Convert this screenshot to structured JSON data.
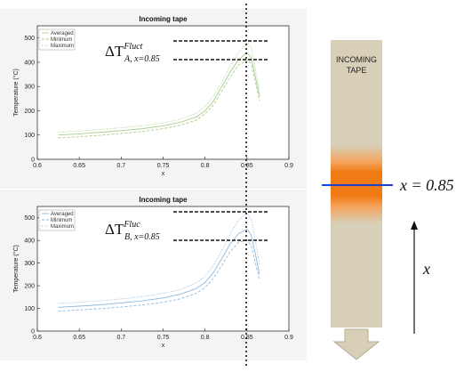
{
  "chart_data": [
    {
      "type": "line",
      "title": "Incoming tape",
      "xlabel": "x",
      "ylabel": "Temperature (°C)",
      "xlim": [
        0.6,
        0.9
      ],
      "ylim": [
        0,
        550
      ],
      "xticks": [
        "0.6",
        "0.65",
        "0.7",
        "0.75",
        "0.8",
        "0.85",
        "0.9"
      ],
      "yticks": [
        "0",
        "100",
        "200",
        "300",
        "400",
        "500"
      ],
      "grid": false,
      "legend_position": "top-left",
      "color": "#a9cc8a",
      "annotation": {
        "main": "ΔT",
        "sup": "Fluct",
        "sub": "A, x=0.85"
      },
      "series": [
        {
          "name": "Averaged",
          "style": "solid",
          "x": [
            0.625,
            0.65,
            0.675,
            0.7,
            0.725,
            0.75,
            0.77,
            0.79,
            0.8,
            0.81,
            0.82,
            0.83,
            0.84,
            0.85,
            0.855,
            0.86,
            0.865
          ],
          "y": [
            100,
            105,
            111,
            118,
            126,
            138,
            152,
            175,
            200,
            240,
            300,
            360,
            410,
            440,
            420,
            340,
            260
          ]
        },
        {
          "name": "Minimum",
          "style": "dash",
          "x": [
            0.625,
            0.65,
            0.675,
            0.7,
            0.725,
            0.75,
            0.77,
            0.79,
            0.8,
            0.81,
            0.82,
            0.83,
            0.84,
            0.85,
            0.855,
            0.86,
            0.865
          ],
          "y": [
            88,
            93,
            99,
            106,
            114,
            126,
            140,
            162,
            187,
            225,
            282,
            340,
            388,
            410,
            395,
            320,
            240
          ]
        },
        {
          "name": "Maximum",
          "style": "dot",
          "x": [
            0.625,
            0.65,
            0.675,
            0.7,
            0.725,
            0.75,
            0.77,
            0.79,
            0.8,
            0.81,
            0.82,
            0.83,
            0.84,
            0.85,
            0.855,
            0.86,
            0.865
          ],
          "y": [
            112,
            117,
            123,
            130,
            138,
            150,
            165,
            190,
            218,
            260,
            320,
            385,
            440,
            480,
            460,
            370,
            285
          ]
        }
      ]
    },
    {
      "type": "line",
      "title": "Incoming tape",
      "xlabel": "x",
      "ylabel": "Temperature (°C)",
      "xlim": [
        0.6,
        0.9
      ],
      "ylim": [
        0,
        550
      ],
      "xticks": [
        "0.6",
        "0.65",
        "0.7",
        "0.75",
        "0.8",
        "0.85",
        "0.9"
      ],
      "yticks": [
        "0",
        "100",
        "200",
        "300",
        "400",
        "500"
      ],
      "grid": false,
      "legend_position": "top-left",
      "color": "#8fb9dd",
      "annotation": {
        "main": "ΔT",
        "sup": "Fluc",
        "sub": "B, x=0.85"
      },
      "series": [
        {
          "name": "Averaged",
          "style": "solid",
          "x": [
            0.625,
            0.65,
            0.675,
            0.7,
            0.725,
            0.75,
            0.77,
            0.79,
            0.8,
            0.81,
            0.82,
            0.83,
            0.84,
            0.85,
            0.855,
            0.86,
            0.865
          ],
          "y": [
            105,
            110,
            116,
            124,
            133,
            146,
            162,
            188,
            215,
            258,
            320,
            385,
            430,
            450,
            425,
            340,
            250
          ]
        },
        {
          "name": "Minimum",
          "style": "dash",
          "x": [
            0.625,
            0.65,
            0.675,
            0.7,
            0.725,
            0.75,
            0.77,
            0.79,
            0.8,
            0.81,
            0.82,
            0.83,
            0.84,
            0.85,
            0.855,
            0.86,
            0.865
          ],
          "y": [
            88,
            93,
            99,
            106,
            115,
            127,
            142,
            167,
            192,
            232,
            290,
            350,
            392,
            400,
            380,
            300,
            225
          ]
        },
        {
          "name": "Maximum",
          "style": "dot",
          "x": [
            0.625,
            0.65,
            0.675,
            0.7,
            0.725,
            0.75,
            0.77,
            0.79,
            0.8,
            0.81,
            0.82,
            0.83,
            0.84,
            0.85,
            0.855,
            0.86,
            0.865
          ],
          "y": [
            122,
            127,
            134,
            142,
            152,
            166,
            183,
            212,
            242,
            290,
            355,
            428,
            490,
            520,
            495,
            400,
            290
          ]
        }
      ]
    }
  ],
  "reference_x": 0.85,
  "tape": {
    "label_line1": "INCOMING",
    "label_line2": "TAPE",
    "position_label": "x = 0.85",
    "axis_label": "x",
    "fill_color": "#d8cfb8",
    "heat_color": "#f07a14",
    "marker_color": "#1f3fcf"
  }
}
